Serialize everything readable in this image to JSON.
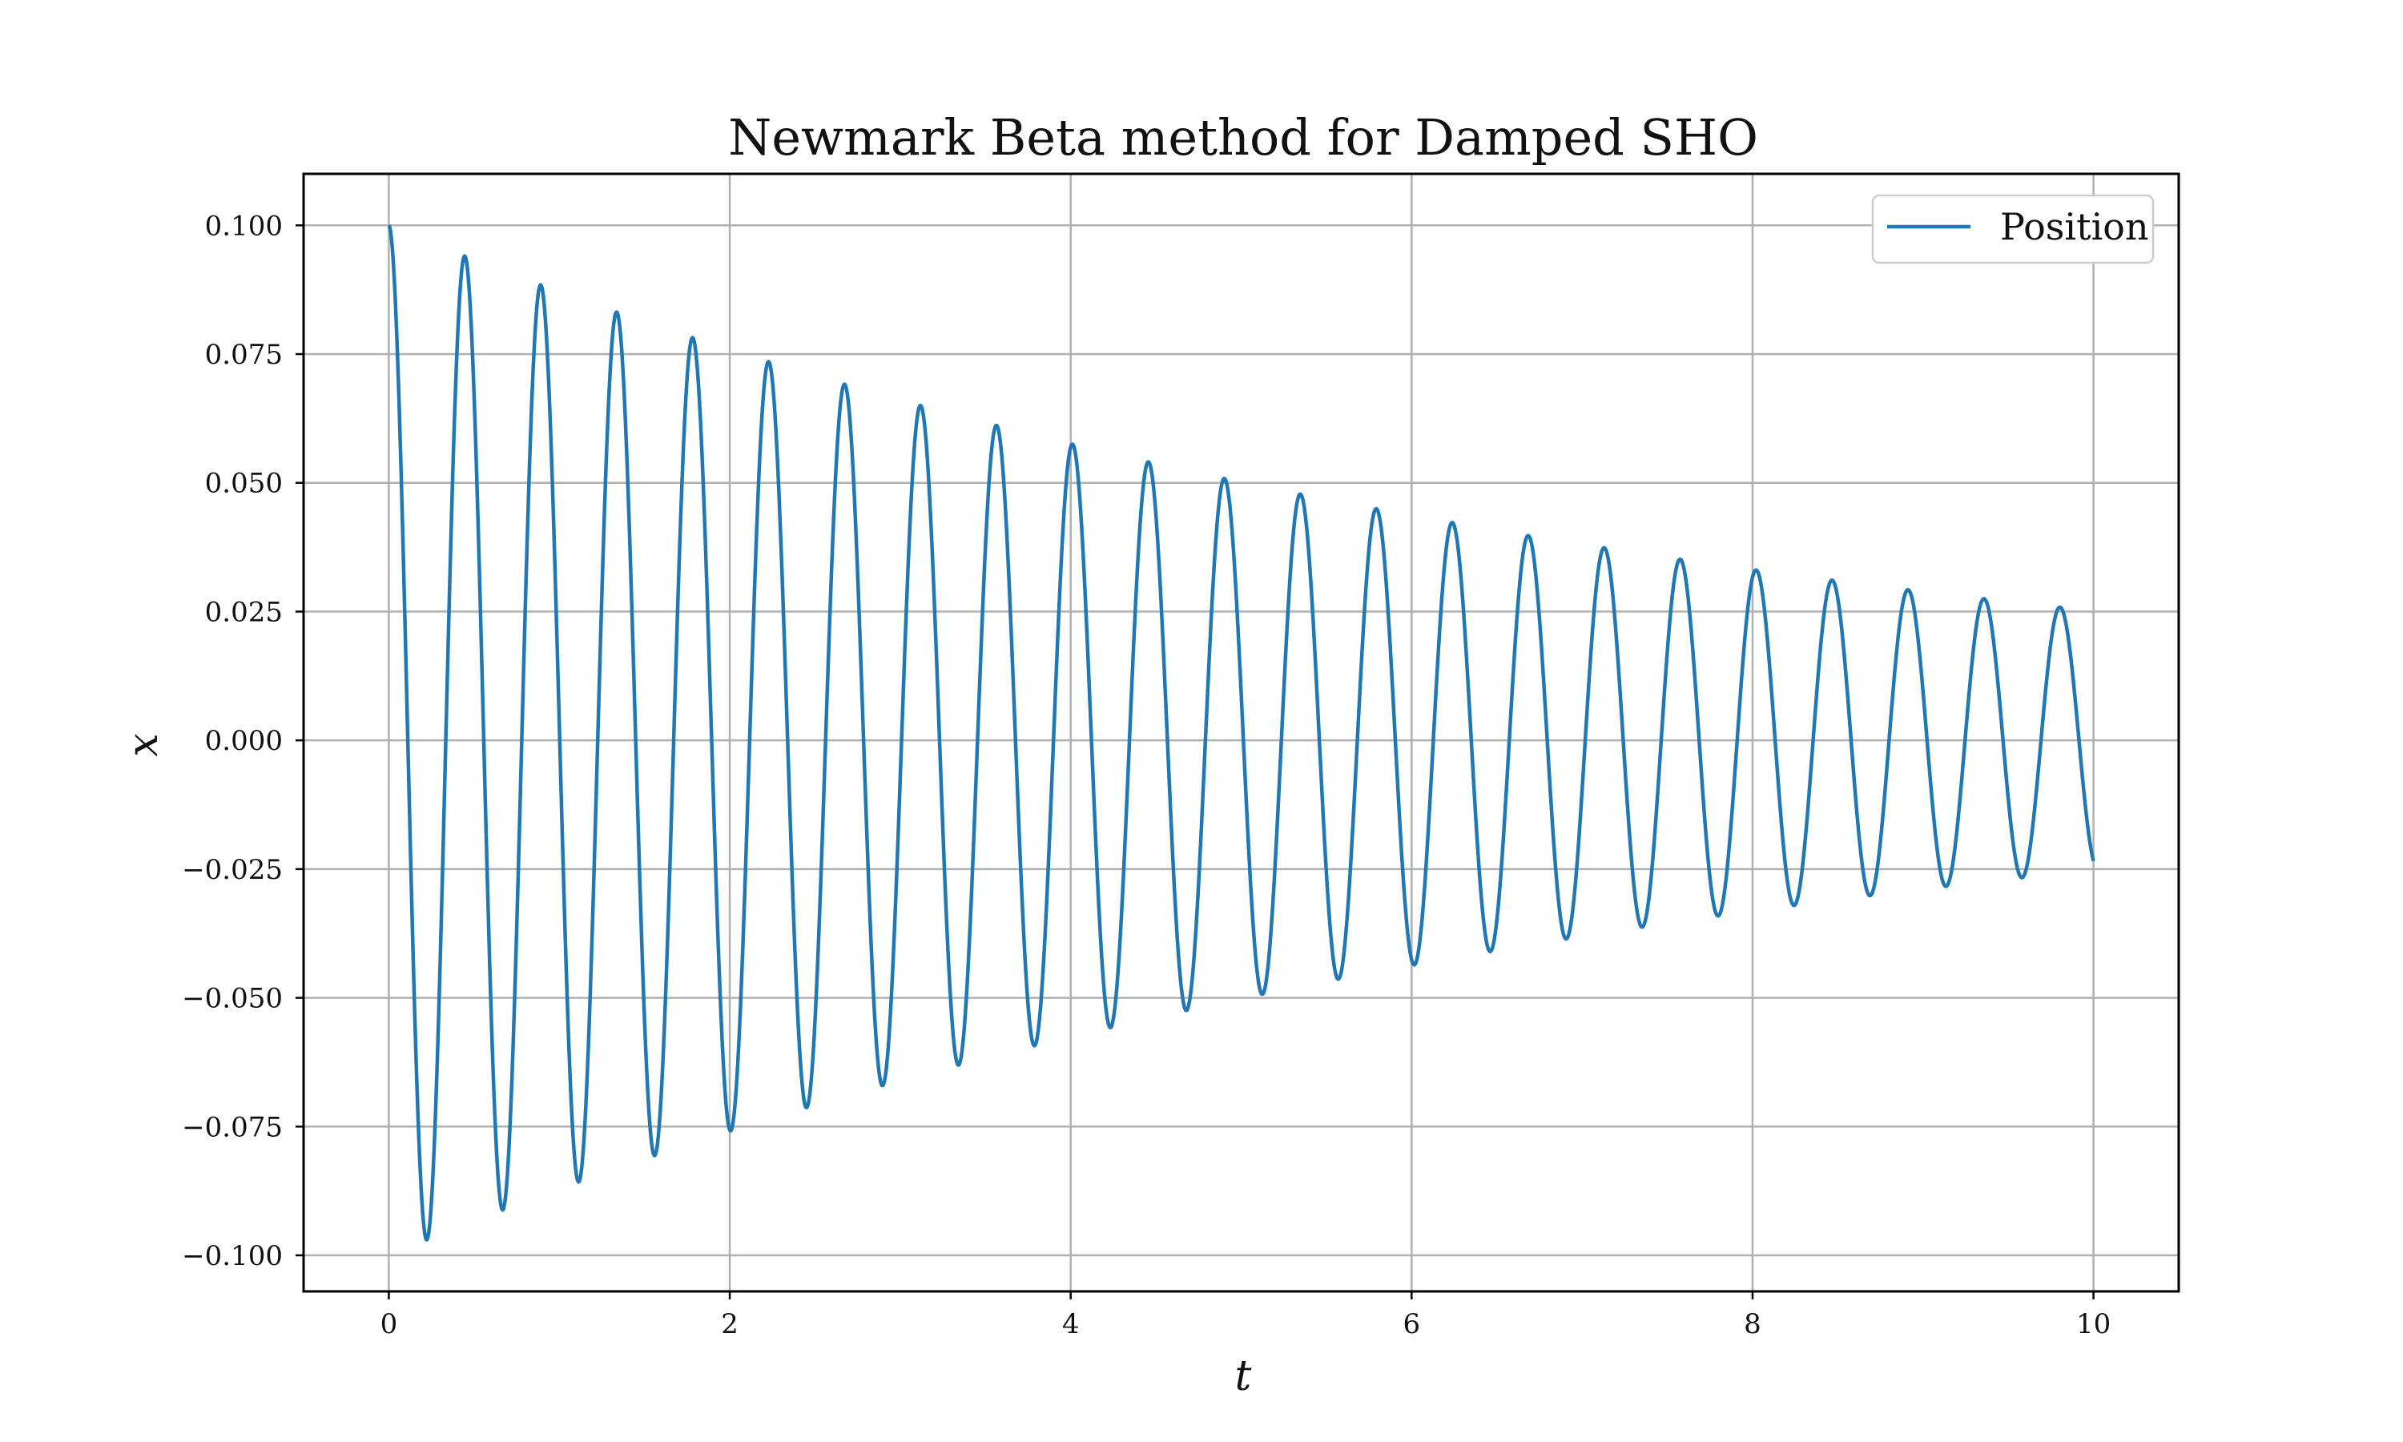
{
  "chart_data": {
    "type": "line",
    "title": "Newmark Beta method for Damped SHO",
    "xlabel": "t",
    "ylabel": "x",
    "xlim": [
      -0.5,
      10.5
    ],
    "ylim": [
      -0.107,
      0.11
    ],
    "x_ticks": [
      0,
      2,
      4,
      6,
      8,
      10
    ],
    "x_tick_labels": [
      "0",
      "2",
      "4",
      "6",
      "8",
      "10"
    ],
    "y_ticks": [
      0.1,
      0.075,
      0.05,
      0.025,
      0.0,
      -0.025,
      -0.05,
      -0.075,
      -0.1
    ],
    "y_tick_labels": [
      "0.100",
      "0.075",
      "0.050",
      "0.025",
      "0.000",
      "−0.025",
      "−0.050",
      "−0.075",
      "−0.100"
    ],
    "grid": true,
    "legend_position": "top-right",
    "series": [
      {
        "name": "Position",
        "color": "#1f77b4",
        "model": "damped_oscillation",
        "amplitude0": 0.1,
        "damping_rate": 0.138,
        "angular_frequency": 14.1,
        "t_start": 0,
        "t_end": 10
      }
    ],
    "peaks": [
      {
        "t": 0.0,
        "x": 0.1
      },
      {
        "t": 0.22,
        "x": -0.096
      },
      {
        "t": 0.45,
        "x": 0.094
      },
      {
        "t": 0.67,
        "x": -0.091
      },
      {
        "t": 0.89,
        "x": 0.088
      },
      {
        "t": 1.11,
        "x": -0.085
      },
      {
        "t": 1.34,
        "x": 0.083
      },
      {
        "t": 1.56,
        "x": -0.08
      },
      {
        "t": 1.78,
        "x": 0.078
      },
      {
        "t": 2.0,
        "x": -0.075
      },
      {
        "t": 2.22,
        "x": 0.073
      },
      {
        "t": 2.45,
        "x": -0.071
      },
      {
        "t": 2.67,
        "x": 0.069
      },
      {
        "t": 2.89,
        "x": -0.066
      },
      {
        "t": 3.12,
        "x": 0.065
      },
      {
        "t": 3.34,
        "x": -0.062
      },
      {
        "t": 3.56,
        "x": 0.061
      },
      {
        "t": 3.78,
        "x": -0.058
      },
      {
        "t": 4.0,
        "x": 0.057
      },
      {
        "t": 4.23,
        "x": -0.055
      },
      {
        "t": 4.45,
        "x": 0.054
      },
      {
        "t": 4.67,
        "x": -0.052
      },
      {
        "t": 4.89,
        "x": 0.05
      },
      {
        "t": 5.12,
        "x": -0.048
      },
      {
        "t": 5.34,
        "x": 0.047
      },
      {
        "t": 5.56,
        "x": -0.045
      },
      {
        "t": 5.78,
        "x": 0.044
      },
      {
        "t": 6.0,
        "x": -0.043
      },
      {
        "t": 6.23,
        "x": 0.041
      },
      {
        "t": 6.45,
        "x": -0.04
      },
      {
        "t": 6.67,
        "x": 0.039
      },
      {
        "t": 6.89,
        "x": -0.038
      },
      {
        "t": 7.12,
        "x": 0.037
      },
      {
        "t": 7.34,
        "x": -0.035
      },
      {
        "t": 7.56,
        "x": 0.034
      },
      {
        "t": 7.78,
        "x": -0.033
      },
      {
        "t": 8.0,
        "x": 0.032
      },
      {
        "t": 8.23,
        "x": -0.031
      },
      {
        "t": 8.45,
        "x": 0.03
      },
      {
        "t": 8.67,
        "x": -0.029
      },
      {
        "t": 8.89,
        "x": 0.028
      },
      {
        "t": 9.12,
        "x": -0.027
      },
      {
        "t": 9.34,
        "x": 0.027
      },
      {
        "t": 9.56,
        "x": -0.026
      },
      {
        "t": 9.78,
        "x": 0.025
      },
      {
        "t": 10.0,
        "x": -0.024
      }
    ]
  }
}
